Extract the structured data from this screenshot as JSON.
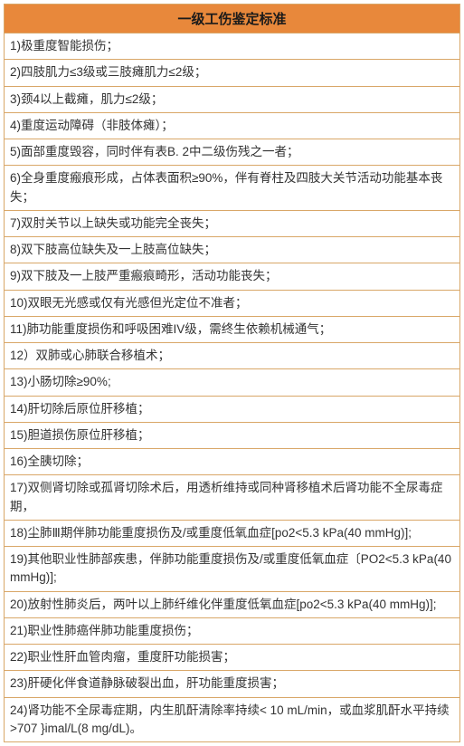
{
  "table": {
    "title": "一级工伤鉴定标准",
    "header_bg": "#e8883b",
    "border_color": "#d9a768",
    "row_bg": "#ffffff",
    "text_color": "#333333",
    "title_fontsize": 15,
    "row_fontsize": 13.5,
    "rows": [
      "1)极重度智能损伤；",
      "2)四肢肌力≤3级或三肢瘫肌力≤2级；",
      "3)颈4以上截瘫，肌力≤2级；",
      "4)重度运动障碍（非肢体瘫）；",
      "5)面部重度毁容，同时伴有表B. 2中二级伤残之一者；",
      "6)全身重度瘢痕形成，占体表面积≥90%，伴有脊柱及四肢大关节活动功能基本丧失；",
      "7)双肘关节以上缺失或功能完全丧失；",
      "8)双下肢高位缺失及一上肢高位缺失；",
      "9)双下肢及一上肢严重瘢痕畸形，活动功能丧失；",
      "10)双眼无光感或仅有光感但光定位不准者；",
      "11)肺功能重度损伤和呼吸困难IV级，需终生依赖机械通气；",
      "12）双肺或心肺联合移植术；",
      "13)小肠切除≥90%;",
      "14)肝切除后原位肝移植；",
      "15)胆道损伤原位肝移植；",
      "16)全胰切除；",
      "17)双侧肾切除或孤肾切除术后，用透析维持或同种肾移植术后肾功能不全尿毒症期，",
      "18)尘肺Ⅲ期伴肺功能重度损伤及/或重度低氧血症[po2<5.3 kPa(40 mmHg)];",
      "19)其他职业性肺部疾患，伴肺功能重度损伤及/或重度低氧血症〔PO2<5.3 kPa(40 mmHg)];",
      "20)放射性肺炎后，两叶以上肺纤维化伴重度低氧血症[po2<5.3 kPa(40 mmHg)];",
      "21)职业性肺癌伴肺功能重度损伤；",
      "22)职业性肝血管肉瘤，重度肝功能损害；",
      "23)肝硬化伴食道静脉破裂出血，肝功能重度损害；",
      "24)肾功能不全尿毒症期，内生肌酐清除率持续< 10 mL/min，或血浆肌酐水平持续>707 }imal/L(8 mg/dL)。"
    ]
  }
}
